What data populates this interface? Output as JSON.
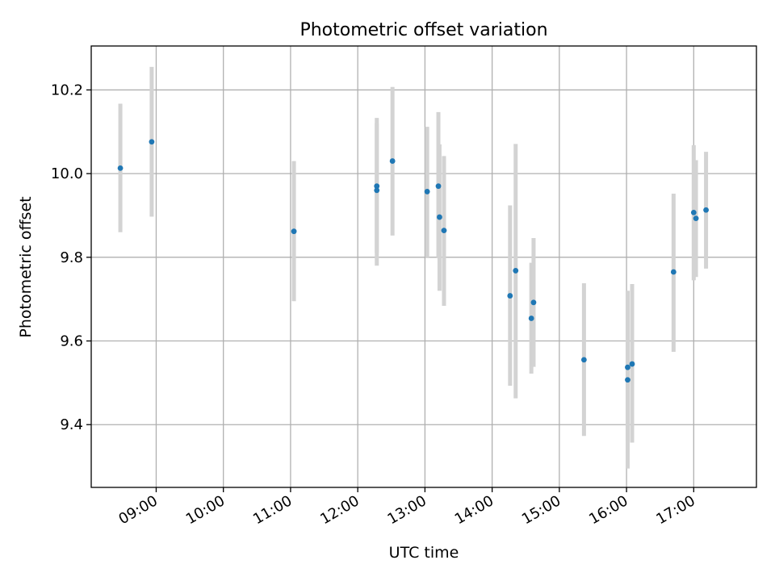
{
  "chart_data": {
    "type": "scatter",
    "title": "Photometric offset variation",
    "xlabel": "UTC time",
    "ylabel": "Photometric offset",
    "x_axis": "time-of-day",
    "xlim": [
      "08:02",
      "17:56"
    ],
    "ylim": [
      9.25,
      10.305
    ],
    "grid": true,
    "x_ticks": [
      "09:00",
      "10:00",
      "11:00",
      "12:00",
      "13:00",
      "14:00",
      "15:00",
      "16:00",
      "17:00"
    ],
    "y_ticks": [
      9.4,
      9.6,
      9.8,
      10.0,
      10.2
    ],
    "y_tick_labels": [
      "9.4",
      "9.6",
      "9.8",
      "10.0",
      "10.2"
    ],
    "colors": {
      "points": "#1f77b4",
      "error_bars": "#d3d3d3"
    },
    "points": [
      {
        "time": "08:28",
        "y": 10.013,
        "low": 9.86,
        "high": 10.167
      },
      {
        "time": "08:56",
        "y": 10.076,
        "low": 9.897,
        "high": 10.255
      },
      {
        "time": "11:03",
        "y": 9.862,
        "low": 9.695,
        "high": 10.03
      },
      {
        "time": "12:17",
        "y": 9.97,
        "low": 9.81,
        "high": 10.133
      },
      {
        "time": "12:17",
        "y": 9.96,
        "low": 9.78,
        "high": 10.12
      },
      {
        "time": "12:31",
        "y": 10.03,
        "low": 9.852,
        "high": 10.207
      },
      {
        "time": "13:02",
        "y": 9.957,
        "low": 9.8,
        "high": 10.112
      },
      {
        "time": "13:12",
        "y": 9.97,
        "low": 9.8,
        "high": 10.147
      },
      {
        "time": "13:13",
        "y": 9.896,
        "low": 9.72,
        "high": 10.07
      },
      {
        "time": "13:17",
        "y": 9.864,
        "low": 9.684,
        "high": 10.042
      },
      {
        "time": "14:16",
        "y": 9.708,
        "low": 9.493,
        "high": 9.924
      },
      {
        "time": "14:21",
        "y": 9.768,
        "low": 9.463,
        "high": 10.071
      },
      {
        "time": "14:35",
        "y": 9.654,
        "low": 9.522,
        "high": 9.787
      },
      {
        "time": "14:37",
        "y": 9.692,
        "low": 9.538,
        "high": 9.846
      },
      {
        "time": "15:22",
        "y": 9.555,
        "low": 9.373,
        "high": 9.738
      },
      {
        "time": "16:01",
        "y": 9.537,
        "low": 9.36,
        "high": 9.72
      },
      {
        "time": "16:01",
        "y": 9.507,
        "low": 9.295,
        "high": 9.72
      },
      {
        "time": "16:05",
        "y": 9.545,
        "low": 9.357,
        "high": 9.736
      },
      {
        "time": "16:42",
        "y": 9.765,
        "low": 9.574,
        "high": 9.952
      },
      {
        "time": "17:00",
        "y": 9.907,
        "low": 9.745,
        "high": 10.068
      },
      {
        "time": "17:02",
        "y": 9.893,
        "low": 9.753,
        "high": 10.032
      },
      {
        "time": "17:11",
        "y": 9.913,
        "low": 9.773,
        "high": 10.052
      }
    ]
  }
}
